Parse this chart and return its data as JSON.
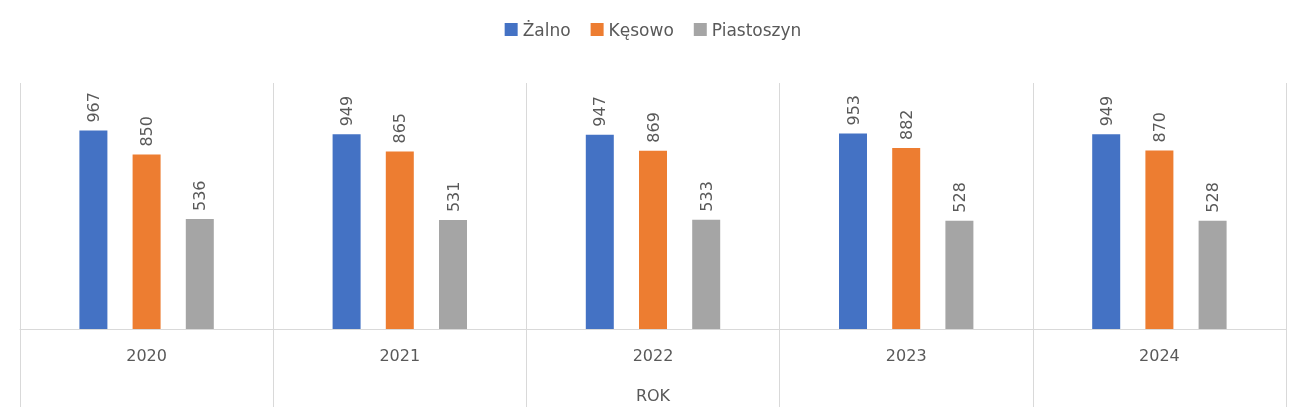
{
  "chart_data": {
    "type": "bar",
    "xlabel": "ROK",
    "categories": [
      "2020",
      "2021",
      "2022",
      "2023",
      "2024"
    ],
    "series": [
      {
        "name": "Żalno",
        "color": "#4472c4",
        "values": [
          967,
          949,
          947,
          953,
          949
        ]
      },
      {
        "name": "Kęsowo",
        "color": "#ed7d31",
        "values": [
          850,
          865,
          869,
          882,
          870
        ]
      },
      {
        "name": "Piastoszyn",
        "color": "#a5a5a5",
        "values": [
          536,
          531,
          533,
          528,
          528
        ]
      }
    ],
    "data_labels": true,
    "grid": "x",
    "legend": "top"
  }
}
